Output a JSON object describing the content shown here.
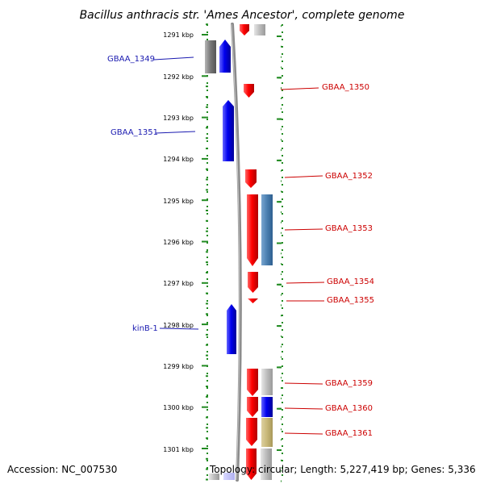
{
  "title": "Bacillus anthracis str. 'Ames Ancestor', complete genome",
  "footer": {
    "accession": "Accession: NC_007530",
    "summary": "Topology: circular; Length: 5,227,419 bp; Genes: 5,336"
  },
  "ruler": {
    "unit": "kbp",
    "ticks": [
      {
        "label": "1291 kbp",
        "kbp": 1291
      },
      {
        "label": "1292 kbp",
        "kbp": 1292
      },
      {
        "label": "1293 kbp",
        "kbp": 1293
      },
      {
        "label": "1294 kbp",
        "kbp": 1294
      },
      {
        "label": "1295 kbp",
        "kbp": 1295
      },
      {
        "label": "1296 kbp",
        "kbp": 1296
      },
      {
        "label": "1297 kbp",
        "kbp": 1297
      },
      {
        "label": "1298 kbp",
        "kbp": 1298
      },
      {
        "label": "1299 kbp",
        "kbp": 1299
      },
      {
        "label": "1300 kbp",
        "kbp": 1300
      },
      {
        "label": "1301 kbp",
        "kbp": 1301
      }
    ]
  },
  "genes": [
    {
      "name": "GBAA_1349",
      "side": "left"
    },
    {
      "name": "GBAA_1351",
      "side": "left"
    },
    {
      "name": "kinB-1",
      "side": "left"
    },
    {
      "name": "GBAA_1350",
      "side": "right"
    },
    {
      "name": "GBAA_1352",
      "side": "right"
    },
    {
      "name": "GBAA_1353",
      "side": "right"
    },
    {
      "name": "GBAA_1354",
      "side": "right"
    },
    {
      "name": "GBAA_1355",
      "side": "right"
    },
    {
      "name": "GBAA_1359",
      "side": "right"
    },
    {
      "name": "GBAA_1360",
      "side": "right"
    },
    {
      "name": "GBAA_1361",
      "side": "right"
    }
  ],
  "colors": {
    "forward_cds": "#ff0000",
    "reverse_cds": "#0000ee",
    "grey_feature": "#8a8a8a",
    "steel_feature": "#4a7fb0",
    "olive_feature": "#c8b878",
    "backbone": "#888888",
    "ticks": "#228b22",
    "left_label": "#1a1ab0",
    "right_label": "#cc0000"
  }
}
